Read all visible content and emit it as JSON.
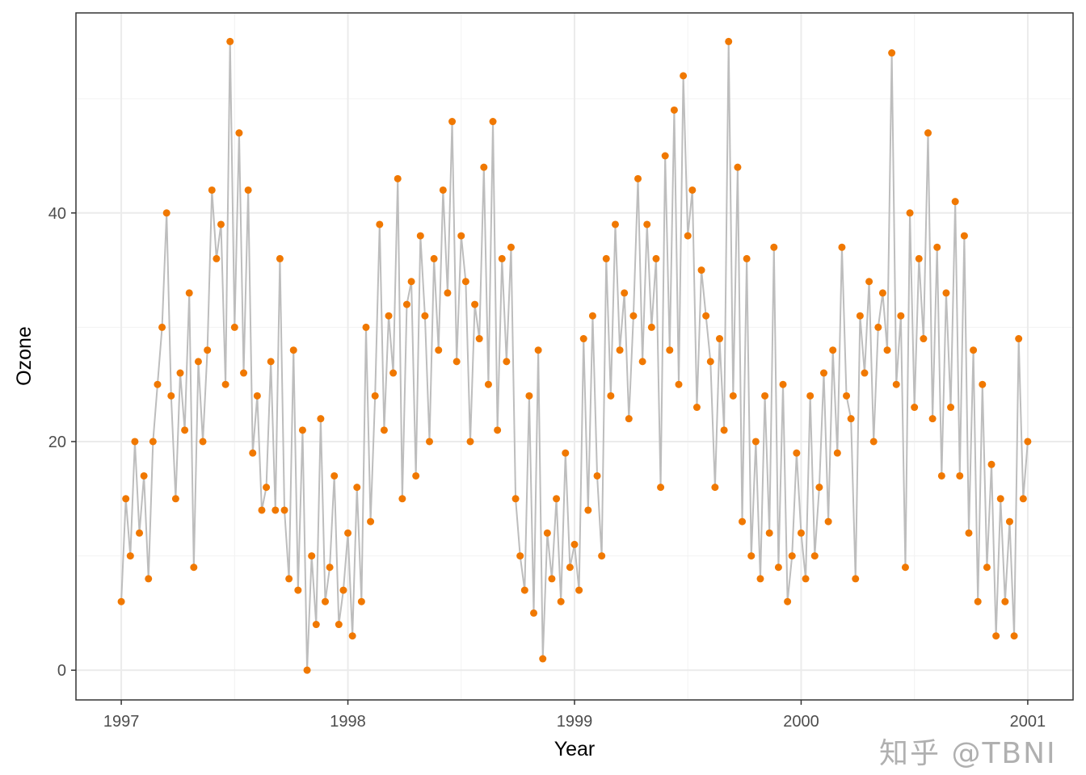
{
  "chart_data": {
    "type": "line",
    "xlabel": "Year",
    "ylabel": "Ozone",
    "xlim": [
      1996.8,
      2001.2
    ],
    "ylim": [
      -2.6,
      57.5
    ],
    "x_ticks": [
      "1997",
      "1998",
      "1999",
      "2000",
      "2001"
    ],
    "x_tick_values": [
      1997,
      1998,
      1999,
      2000,
      2001
    ],
    "y_ticks": [
      "0",
      "20",
      "40"
    ],
    "y_tick_values": [
      0,
      20,
      40
    ],
    "grid": true,
    "line_color": "#bdbdbd",
    "point_color": "#f07800",
    "x": [
      1997.0,
      1997.02,
      1997.04,
      1997.06,
      1997.08,
      1997.1,
      1997.12,
      1997.14,
      1997.16,
      1997.18,
      1997.2,
      1997.22,
      1997.24,
      1997.26,
      1997.28,
      1997.3,
      1997.32,
      1997.34,
      1997.36,
      1997.38,
      1997.4,
      1997.42,
      1997.44,
      1997.46,
      1997.48,
      1997.5,
      1997.52,
      1997.54,
      1997.56,
      1997.58,
      1997.6,
      1997.62,
      1997.64,
      1997.66,
      1997.68,
      1997.7,
      1997.72,
      1997.74,
      1997.76,
      1997.78,
      1997.8,
      1997.82,
      1997.84,
      1997.86,
      1997.88,
      1997.9,
      1997.92,
      1997.94,
      1997.96,
      1997.98,
      1998.0,
      1998.02,
      1998.04,
      1998.06,
      1998.08,
      1998.1,
      1998.12,
      1998.14,
      1998.16,
      1998.18,
      1998.2,
      1998.22,
      1998.24,
      1998.26,
      1998.28,
      1998.3,
      1998.32,
      1998.34,
      1998.36,
      1998.38,
      1998.4,
      1998.42,
      1998.44,
      1998.46,
      1998.48,
      1998.5,
      1998.52,
      1998.54,
      1998.56,
      1998.58,
      1998.6,
      1998.62,
      1998.64,
      1998.66,
      1998.68,
      1998.7,
      1998.72,
      1998.74,
      1998.76,
      1998.78,
      1998.8,
      1998.82,
      1998.84,
      1998.86,
      1998.88,
      1998.9,
      1998.92,
      1998.94,
      1998.96,
      1998.98,
      1999.0,
      1999.02,
      1999.04,
      1999.06,
      1999.08,
      1999.1,
      1999.12,
      1999.14,
      1999.16,
      1999.18,
      1999.2,
      1999.22,
      1999.24,
      1999.26,
      1999.28,
      1999.3,
      1999.32,
      1999.34,
      1999.36,
      1999.38,
      1999.4,
      1999.42,
      1999.44,
      1999.46,
      1999.48,
      1999.5,
      1999.52,
      1999.54,
      1999.56,
      1999.58,
      1999.6,
      1999.62,
      1999.64,
      1999.66,
      1999.68,
      1999.7,
      1999.72,
      1999.74,
      1999.76,
      1999.78,
      1999.8,
      1999.82,
      1999.84,
      1999.86,
      1999.88,
      1999.9,
      1999.92,
      1999.94,
      1999.96,
      1999.98,
      2000.0,
      2000.02,
      2000.04,
      2000.06,
      2000.08,
      2000.1,
      2000.12,
      2000.14,
      2000.16,
      2000.18,
      2000.2,
      2000.22,
      2000.24,
      2000.26,
      2000.28,
      2000.3,
      2000.32,
      2000.34,
      2000.36,
      2000.38,
      2000.4,
      2000.42,
      2000.44,
      2000.46,
      2000.48,
      2000.5,
      2000.52,
      2000.54,
      2000.56,
      2000.58,
      2000.6,
      2000.62,
      2000.64,
      2000.66,
      2000.68,
      2000.7,
      2000.72,
      2000.74,
      2000.76,
      2000.78,
      2000.8,
      2000.82,
      2000.84,
      2000.86,
      2000.88,
      2000.9,
      2000.92,
      2000.94,
      2000.96,
      2000.98,
      2001.0
    ],
    "y": [
      6,
      15,
      10,
      20,
      12,
      17,
      8,
      20,
      25,
      30,
      40,
      24,
      15,
      26,
      21,
      33,
      9,
      27,
      20,
      28,
      42,
      36,
      39,
      25,
      55,
      30,
      47,
      26,
      42,
      19,
      24,
      14,
      16,
      27,
      14,
      36,
      14,
      8,
      28,
      7,
      21,
      0,
      10,
      4,
      22,
      6,
      9,
      17,
      4,
      7,
      12,
      3,
      16,
      6,
      30,
      13,
      24,
      39,
      21,
      31,
      26,
      43,
      15,
      32,
      34,
      17,
      38,
      31,
      20,
      36,
      28,
      42,
      33,
      48,
      27,
      38,
      34,
      20,
      32,
      29,
      44,
      25,
      48,
      21,
      36,
      27,
      37,
      15,
      10,
      7,
      24,
      5,
      28,
      1,
      12,
      8,
      15,
      6,
      19,
      9,
      11,
      7,
      29,
      14,
      31,
      17,
      10,
      36,
      24,
      39,
      28,
      33,
      22,
      31,
      43,
      27,
      39,
      30,
      36,
      16,
      45,
      28,
      49,
      25,
      52,
      38,
      42,
      23,
      35,
      31,
      27,
      16,
      29,
      21,
      55,
      24,
      44,
      13,
      36,
      10,
      20,
      8,
      24,
      12,
      37,
      9,
      25,
      6,
      10,
      19,
      12,
      8,
      24,
      10,
      16,
      26,
      13,
      28,
      19,
      37,
      24,
      22,
      8,
      31,
      26,
      34,
      20,
      30,
      33,
      28,
      54,
      25,
      31,
      9,
      40,
      23,
      36,
      29,
      47,
      22,
      37,
      17,
      33,
      23,
      41,
      17,
      38,
      12,
      28,
      6,
      25,
      9,
      18,
      3,
      15,
      6,
      13,
      3,
      29,
      15,
      20
    ]
  },
  "watermark": "知乎 @TBNI"
}
